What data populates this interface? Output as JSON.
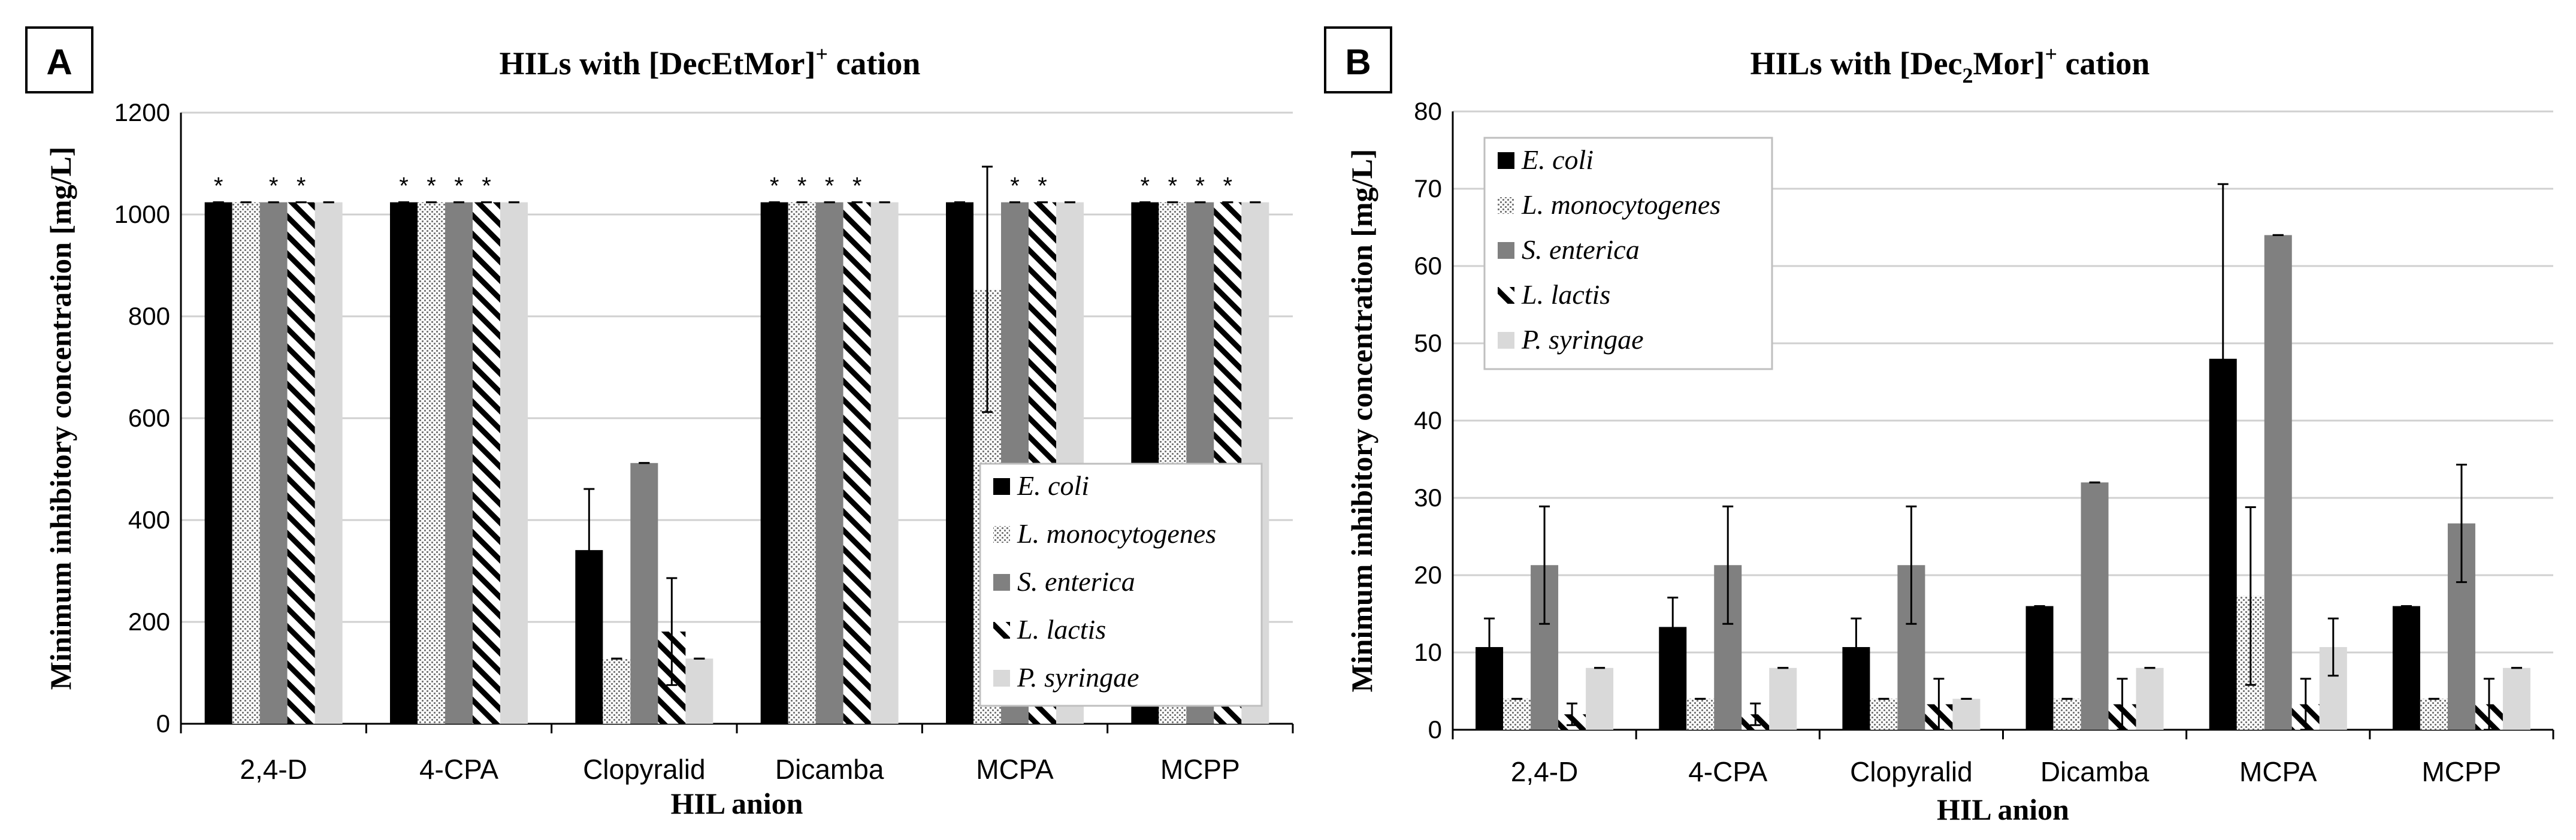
{
  "panels": {
    "A": {
      "letter": "A",
      "title_pre": "HILs with [DecEtMor]",
      "title_sup": "+",
      "title_post": " cation"
    },
    "B": {
      "letter": "B",
      "title_pre": "HILs with [Dec",
      "title_sub": "2",
      "title_post": "Mor]",
      "title_sup": "+",
      "title_post2": " cation"
    }
  },
  "chart_data": [
    {
      "type": "bar",
      "title": "HILs with [DecEtMor]+ cation",
      "xlabel": "HIL anion",
      "ylabel": "Minimum inhibitory concentration [mg/L]",
      "ylim": [
        0,
        1200
      ],
      "yticks": [
        "0",
        "200",
        "400",
        "600",
        "800",
        "1000",
        "1200"
      ],
      "categories": [
        "2,4-D",
        "4-CPA",
        "Clopyralid",
        "Dicamba",
        "MCPA",
        "MCPP"
      ],
      "legend_position": "bottom-right",
      "series": [
        {
          "name": "E. coli",
          "values": [
            1024,
            1024,
            341,
            1024,
            1024,
            1024
          ],
          "errors": [
            0,
            0,
            120,
            0,
            0,
            0
          ],
          "star": [
            true,
            true,
            false,
            true,
            false,
            true
          ]
        },
        {
          "name": "L. monocytogenes",
          "values": [
            1024,
            1024,
            128,
            1024,
            853,
            1024
          ],
          "errors": [
            0,
            0,
            0,
            0,
            241,
            0
          ],
          "star": [
            false,
            true,
            false,
            true,
            false,
            true
          ]
        },
        {
          "name": "S. enterica",
          "values": [
            1024,
            1024,
            512,
            1024,
            1024,
            1024
          ],
          "errors": [
            0,
            0,
            0,
            0,
            0,
            0
          ],
          "star": [
            true,
            true,
            false,
            true,
            true,
            true
          ]
        },
        {
          "name": "L. lactis",
          "values": [
            1024,
            1024,
            181,
            1024,
            1024,
            1024
          ],
          "errors": [
            0,
            0,
            105,
            0,
            0,
            0
          ],
          "star": [
            true,
            true,
            false,
            true,
            true,
            true
          ]
        },
        {
          "name": "P. syringae",
          "values": [
            1024,
            1024,
            128,
            1024,
            1024,
            1024
          ],
          "errors": [
            0,
            0,
            0,
            0,
            0,
            0
          ],
          "star": [
            false,
            false,
            false,
            false,
            false,
            false
          ]
        }
      ]
    },
    {
      "type": "bar",
      "title": "HILs with [Dec2Mor]+ cation",
      "xlabel": "HIL anion",
      "ylabel": "Minimum inhibitory concentration [mg/L]",
      "ylim": [
        0,
        80
      ],
      "yticks": [
        "0",
        "10",
        "20",
        "30",
        "40",
        "50",
        "60",
        "70",
        "80"
      ],
      "categories": [
        "2,4-D",
        "4-CPA",
        "Clopyralid",
        "Dicamba",
        "MCPA",
        "MCPP"
      ],
      "legend_position": "top-left",
      "series": [
        {
          "name": "E. coli",
          "values": [
            10.7,
            13.3,
            10.7,
            16,
            48,
            16
          ],
          "errors": [
            3.7,
            3.8,
            3.7,
            0,
            22.6,
            0
          ]
        },
        {
          "name": "L. monocytogenes",
          "values": [
            4,
            4,
            4,
            4,
            17.3,
            4
          ],
          "errors": [
            0,
            0,
            0,
            0,
            11.5,
            0
          ]
        },
        {
          "name": "S. enterica",
          "values": [
            21.3,
            21.3,
            21.3,
            32,
            64,
            26.7
          ],
          "errors": [
            7.6,
            7.6,
            7.6,
            0,
            0,
            7.6
          ]
        },
        {
          "name": "L. lactis",
          "values": [
            2,
            2,
            3.3,
            3.3,
            3.3,
            3.3
          ],
          "errors": [
            1.4,
            1.4,
            3.3,
            3.3,
            3.3,
            3.3
          ]
        },
        {
          "name": "P. syringae",
          "values": [
            8,
            8,
            4,
            8,
            10.7,
            8
          ],
          "errors": [
            0,
            0,
            0,
            0,
            3.7,
            0
          ]
        }
      ]
    }
  ]
}
